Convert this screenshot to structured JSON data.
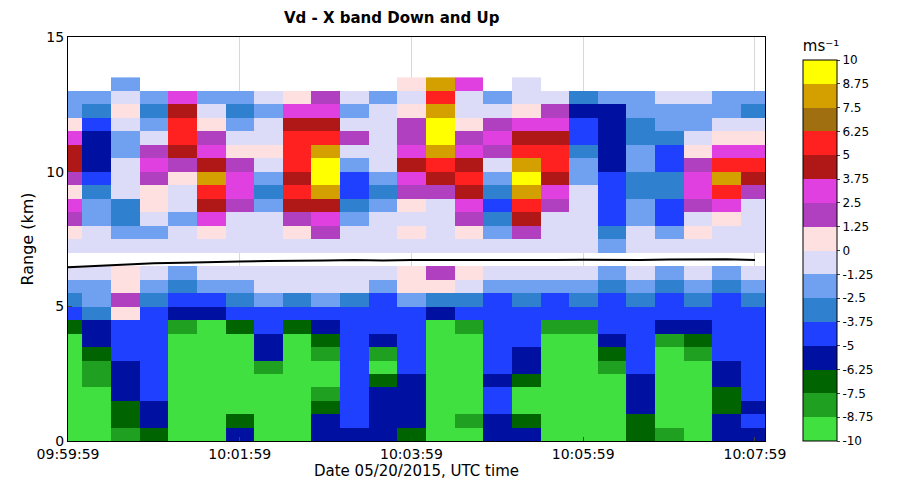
{
  "chart_data": {
    "type": "heatmap",
    "title": "Vd - X band Down and Up",
    "x_label": "Date 05/20/2015, UTC time",
    "y_label": "Range (km)",
    "x": [
      "09:59:59",
      "10:00:19",
      "10:00:39",
      "10:00:59",
      "10:01:19",
      "10:01:39",
      "10:01:59",
      "10:02:19",
      "10:02:39",
      "10:02:59",
      "10:03:19",
      "10:03:39",
      "10:03:59",
      "10:04:19",
      "10:04:39",
      "10:04:59",
      "10:05:19",
      "10:05:39",
      "10:05:59",
      "10:06:19",
      "10:06:39",
      "10:06:59",
      "10:07:19",
      "10:07:39",
      "10:07:59"
    ],
    "y": [
      0.25,
      0.75,
      1.25,
      1.75,
      2.25,
      2.75,
      3.25,
      3.75,
      4.25,
      4.75,
      5.25,
      5.75,
      6.25,
      6.75,
      7.25,
      7.75,
      8.25,
      8.75,
      9.25,
      9.75,
      10.25,
      10.75,
      11.25,
      11.75,
      12.25,
      12.75,
      13.25
    ],
    "cells": [
      [
        -9,
        -9,
        -8,
        -7,
        -9,
        -9,
        -6,
        -9,
        -9,
        -5.5,
        -5.5,
        -6,
        -7,
        -9,
        -9,
        -5.5,
        -6,
        -9,
        -9,
        -9,
        -7,
        -8,
        -9,
        -6,
        -5.5
      ],
      [
        -9,
        -9,
        -7,
        -6,
        -9,
        -9,
        -7,
        -9,
        -9,
        -5.5,
        -5,
        -5.5,
        -6,
        -9,
        -8,
        -5.5,
        -7,
        -9,
        -9,
        -9,
        -7,
        -9,
        -9,
        -6,
        -5
      ],
      [
        -9,
        -9,
        -7,
        -5.5,
        -9,
        -9,
        -9,
        -9,
        -9,
        -7,
        -5,
        -5.5,
        -6,
        -9,
        -9,
        -5,
        -9,
        -9,
        -9,
        -9,
        -6,
        -9,
        -9,
        -7,
        -5.5
      ],
      [
        -9,
        -9,
        -6,
        -5,
        -9,
        -9,
        -9,
        -9,
        -9,
        -8,
        -5,
        -6,
        -5.5,
        -9,
        -9,
        -5,
        -9,
        -9,
        -9,
        -9,
        -6,
        -9,
        -9,
        -7,
        -5
      ],
      [
        -9,
        -8,
        -6,
        -5,
        -9,
        -9,
        -9,
        -9,
        -9,
        -9,
        -5,
        -7,
        -5.5,
        -9,
        -9,
        -5.5,
        -7,
        -9,
        -9,
        -9,
        -5.5,
        -9,
        -9,
        -6,
        -5
      ],
      [
        -9,
        -8,
        -5.5,
        -5,
        -9,
        -9,
        -9,
        -8,
        -9,
        -9,
        -5,
        -9,
        -5,
        -9,
        -9,
        -5,
        -6,
        -9,
        -9,
        -8,
        -5,
        -9,
        -9,
        -5.5,
        -5
      ],
      [
        -9,
        -7,
        -5,
        -4.5,
        -9,
        -9,
        -9,
        -6,
        -9,
        -8,
        -5,
        -8,
        -5,
        -9,
        -9,
        -5,
        -5.5,
        -9,
        -9,
        -7,
        -5,
        -9,
        -8,
        -5,
        -5
      ],
      [
        -9,
        -6,
        -5,
        -4.5,
        -9,
        -9,
        -9,
        -5.5,
        -9,
        -7,
        -5,
        -6,
        -5,
        -9,
        -9,
        -5,
        -5,
        -9,
        -9,
        -6,
        -5,
        -8,
        -7,
        -5,
        -4.5
      ],
      [
        -7,
        -5.5,
        -4.5,
        -4.5,
        -8,
        -9,
        -7,
        -5,
        -7,
        -6,
        -4.5,
        -5,
        -4.5,
        -9,
        -8,
        -4.5,
        -5,
        -8,
        -8,
        -5,
        -4.5,
        -6,
        -5.5,
        -4.5,
        -4.5
      ],
      [
        -5,
        -3,
        0.6,
        -4,
        -5.5,
        -6,
        -5,
        -4.5,
        -5,
        -4.5,
        -4,
        -4.5,
        -4,
        -6,
        -5,
        -4,
        -4,
        -5,
        -5,
        -4.5,
        -4,
        -4.5,
        -4.5,
        -4,
        -4
      ],
      [
        -3,
        -2,
        2,
        -3,
        -4.5,
        -4,
        -3,
        -2,
        -3,
        -2,
        -3,
        -4,
        -2,
        -3,
        -3,
        -4,
        -3,
        -4,
        -3,
        -4,
        -3,
        -4,
        -3.5,
        -4,
        -3
      ],
      [
        -2,
        -1.5,
        0.6,
        -2,
        -3,
        -2,
        -2,
        -1,
        -0.5,
        -0.5,
        -1,
        -2,
        0.6,
        0.6,
        -0.5,
        -2,
        -2,
        -2,
        -2,
        -3,
        -2,
        -3,
        -2.5,
        -3,
        -2
      ],
      [
        -1,
        -0.5,
        0.6,
        -1,
        -2,
        -0.5,
        -1,
        -0.5,
        -0.5,
        -0.5,
        -0.5,
        -1,
        0.6,
        2,
        0.6,
        -1,
        -1,
        -1,
        -0.5,
        -1.5,
        -0.5,
        -1.5,
        -1,
        -1.5,
        -1
      ],
      [
        null,
        null,
        null,
        null,
        null,
        null,
        null,
        null,
        null,
        null,
        null,
        null,
        null,
        null,
        null,
        null,
        null,
        null,
        null,
        null,
        null,
        null,
        null,
        null,
        null
      ],
      [
        -0.5,
        -0.5,
        -0.5,
        -1,
        -0.5,
        -0.5,
        -1,
        -0.5,
        -0.5,
        -0.5,
        -0.5,
        -0.5,
        -0.5,
        -0.5,
        -1,
        -0.5,
        -0.5,
        -0.5,
        -0.5,
        -2,
        -0.5,
        -0.5,
        -0.5,
        -0.5,
        -0.5
      ],
      [
        0.6,
        -0.5,
        -2,
        -2,
        -0.5,
        0.6,
        -0.5,
        -0.5,
        0.6,
        2,
        -0.5,
        -0.5,
        0.6,
        -0.5,
        0.6,
        -2,
        2,
        -0.5,
        -0.5,
        -3,
        -0.5,
        -2,
        0.6,
        -0.5,
        -0.5
      ],
      [
        2,
        -2,
        -3,
        -0.5,
        -2,
        3,
        -0.5,
        -0.5,
        2,
        3,
        -2,
        -0.5,
        -0.5,
        -0.5,
        2,
        -3,
        4.5,
        -0.5,
        -0.5,
        -4.5,
        -2,
        -4.5,
        -0.5,
        0.6,
        -0.5
      ],
      [
        3,
        -2,
        -3,
        0.6,
        -0.5,
        4.5,
        2,
        -2,
        4.5,
        4.5,
        -3,
        -2,
        0.6,
        -0.5,
        3,
        -4.5,
        5.5,
        2,
        -0.5,
        -5,
        -2,
        -4.5,
        2,
        3,
        -0.5
      ],
      [
        0.6,
        -3,
        -0.5,
        0.6,
        -0.5,
        5.5,
        3,
        -3,
        5.5,
        8,
        -4.5,
        -3,
        2,
        2,
        4.5,
        -3,
        8,
        3,
        -0.5,
        -4.5,
        -3,
        -3,
        3,
        5.5,
        2
      ],
      [
        2,
        -4.5,
        -0.5,
        2,
        0.6,
        8,
        3,
        -2,
        4.5,
        9.5,
        -4.5,
        -2,
        3,
        4.5,
        5.5,
        -2,
        9.5,
        4.5,
        -2,
        -4.5,
        -3,
        -3,
        3,
        8,
        4.5
      ],
      [
        4.5,
        -5.5,
        -0.5,
        3,
        2,
        4.5,
        2,
        -0.5,
        5.5,
        9.5,
        -2,
        -0.5,
        4.5,
        5.5,
        4.5,
        -0.5,
        8,
        5.5,
        -2,
        -5.5,
        -2,
        -4.5,
        2,
        5.5,
        5.5
      ],
      [
        4.5,
        -5.5,
        -2,
        2,
        4.5,
        3,
        0.6,
        0.6,
        5.5,
        8,
        -0.5,
        -0.5,
        3,
        8,
        3,
        2,
        5.5,
        5.5,
        -3,
        -5.5,
        -2,
        -4.5,
        0.6,
        3,
        3
      ],
      [
        3,
        -5.5,
        -2,
        -0.5,
        5.5,
        2,
        -0.5,
        -0.5,
        5.5,
        5.5,
        2,
        -0.5,
        2,
        9.5,
        2,
        3,
        4.5,
        4.5,
        -4.5,
        -5.5,
        -3,
        -3,
        -0.5,
        0.6,
        0.6
      ],
      [
        0.6,
        -4.5,
        -0.5,
        -2,
        5.5,
        0.6,
        -2,
        -0.5,
        4.5,
        4.5,
        -0.5,
        -0.5,
        2,
        9.5,
        0.6,
        2,
        3,
        3,
        -4.5,
        -5.5,
        -3,
        -2,
        -2,
        -0.5,
        -0.5
      ],
      [
        -2,
        -3,
        0.6,
        -3,
        4.5,
        -0.5,
        -3,
        -2,
        3,
        3,
        -2,
        -0.5,
        0.6,
        8,
        -0.5,
        -0.5,
        0.6,
        2,
        -5.5,
        -6,
        -2,
        -2,
        -2,
        -2,
        -3
      ],
      [
        -2,
        -2,
        -0.5,
        -2,
        3,
        -2,
        -2,
        -0.5,
        0.6,
        2,
        -0.5,
        -2,
        -0.5,
        5.5,
        -0.5,
        -2,
        -0.5,
        -0.5,
        -3,
        -2,
        -2,
        -0.5,
        -0.5,
        -2,
        -2
      ],
      [
        null,
        null,
        -2,
        null,
        null,
        null,
        null,
        null,
        null,
        null,
        null,
        null,
        0.6,
        8,
        3,
        null,
        -0.5,
        null,
        null,
        null,
        null,
        null,
        null,
        null,
        null
      ]
    ],
    "xlim": [
      "09:59:59",
      "10:08:06"
    ],
    "xticks": [
      "09:59:59",
      "10:01:59",
      "10:03:59",
      "10:05:59",
      "10:07:59"
    ],
    "ylim": [
      0,
      15
    ],
    "yticks": [
      0,
      5,
      10,
      15
    ],
    "grid": true,
    "colorbar": {
      "title": "ms⁻¹",
      "range": [
        -10,
        10
      ],
      "ticks": [
        10,
        8.75,
        7.5,
        6.25,
        5,
        3.75,
        2.5,
        1.25,
        0,
        -1.25,
        -2.5,
        -3.75,
        -5,
        -6.25,
        -7.5,
        -8.75,
        -10
      ],
      "colors": [
        "#40e040",
        "#20a020",
        "#006400",
        "#0010a0",
        "#2040ff",
        "#3080d0",
        "#70a0f0",
        "#dcdcf8",
        "#ffe0e0",
        "#b040c0",
        "#e040e0",
        "#b01818",
        "#ff2020",
        "#a07010",
        "#d4a000",
        "#ffff00"
      ]
    },
    "series": [
      {
        "type": "line",
        "color": "#000000",
        "values": [
          6.45,
          6.5,
          6.55,
          6.6,
          6.62,
          6.65,
          6.66,
          6.68,
          6.68,
          6.7,
          6.72,
          6.7,
          6.72,
          6.72,
          6.7,
          6.7,
          6.72,
          6.72,
          6.73,
          6.72,
          6.72,
          6.74,
          6.75,
          6.75,
          6.72
        ]
      }
    ]
  }
}
